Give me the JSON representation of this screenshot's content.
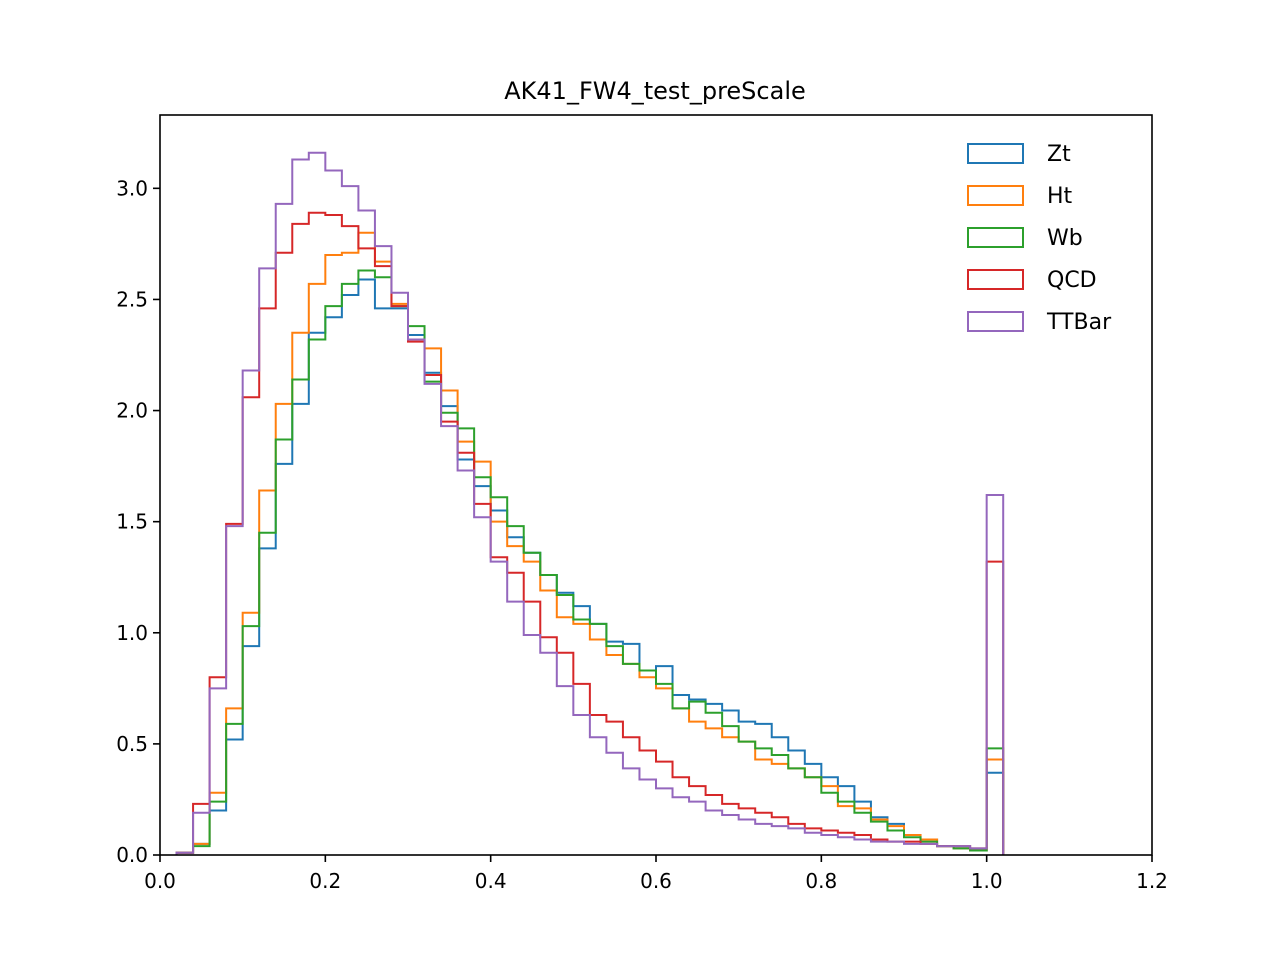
{
  "chart_data": {
    "type": "histogram",
    "title": "AK41_FW4_test_preScale",
    "xlabel": "",
    "ylabel": "",
    "xlim": [
      0.0,
      1.2
    ],
    "ylim": [
      0.0,
      3.33
    ],
    "grid": false,
    "legend_position": "top-right",
    "bin_edges_start": 0.02,
    "bin_width": 0.02,
    "x_ticks": [
      "0.0",
      "0.2",
      "0.4",
      "0.6",
      "0.8",
      "1.0",
      "1.2"
    ],
    "y_ticks": [
      "0.0",
      "0.5",
      "1.0",
      "1.5",
      "2.0",
      "2.5",
      "3.0"
    ],
    "series": [
      {
        "name": "Zt",
        "color": "#1f77b4",
        "values": [
          0.01,
          0.05,
          0.2,
          0.52,
          0.94,
          1.38,
          1.76,
          2.03,
          2.35,
          2.42,
          2.52,
          2.59,
          2.46,
          2.46,
          2.34,
          2.17,
          2.02,
          1.78,
          1.66,
          1.55,
          1.43,
          1.36,
          1.26,
          1.18,
          1.12,
          1.04,
          0.96,
          0.95,
          0.83,
          0.85,
          0.72,
          0.7,
          0.68,
          0.65,
          0.6,
          0.59,
          0.53,
          0.47,
          0.41,
          0.35,
          0.31,
          0.24,
          0.17,
          0.14,
          0.09,
          0.07,
          0.04,
          0.03,
          0.02,
          0.37
        ]
      },
      {
        "name": "Ht",
        "color": "#ff7f0e",
        "values": [
          0.01,
          0.05,
          0.28,
          0.66,
          1.09,
          1.64,
          2.03,
          2.35,
          2.57,
          2.7,
          2.71,
          2.8,
          2.67,
          2.48,
          2.32,
          2.28,
          2.09,
          1.86,
          1.77,
          1.5,
          1.39,
          1.32,
          1.19,
          1.07,
          1.04,
          0.97,
          0.9,
          0.86,
          0.8,
          0.75,
          0.66,
          0.6,
          0.57,
          0.53,
          0.51,
          0.43,
          0.41,
          0.39,
          0.35,
          0.31,
          0.22,
          0.21,
          0.16,
          0.13,
          0.09,
          0.07,
          0.04,
          0.03,
          0.02,
          0.43
        ]
      },
      {
        "name": "Wb",
        "color": "#2ca02c",
        "values": [
          0.01,
          0.04,
          0.24,
          0.59,
          1.03,
          1.45,
          1.87,
          2.14,
          2.32,
          2.47,
          2.57,
          2.63,
          2.6,
          2.47,
          2.38,
          2.13,
          1.99,
          1.92,
          1.7,
          1.61,
          1.48,
          1.36,
          1.26,
          1.17,
          1.06,
          1.04,
          0.94,
          0.86,
          0.83,
          0.77,
          0.66,
          0.69,
          0.64,
          0.58,
          0.51,
          0.48,
          0.45,
          0.39,
          0.35,
          0.28,
          0.24,
          0.19,
          0.15,
          0.11,
          0.08,
          0.06,
          0.04,
          0.03,
          0.02,
          0.48
        ]
      },
      {
        "name": "QCD",
        "color": "#d62728",
        "values": [
          0.01,
          0.23,
          0.8,
          1.49,
          2.06,
          2.46,
          2.71,
          2.84,
          2.89,
          2.88,
          2.83,
          2.73,
          2.65,
          2.47,
          2.31,
          2.16,
          1.95,
          1.81,
          1.58,
          1.34,
          1.27,
          1.14,
          0.98,
          0.91,
          0.77,
          0.63,
          0.6,
          0.53,
          0.47,
          0.42,
          0.35,
          0.31,
          0.27,
          0.23,
          0.21,
          0.19,
          0.17,
          0.14,
          0.12,
          0.11,
          0.1,
          0.09,
          0.07,
          0.06,
          0.06,
          0.05,
          0.04,
          0.04,
          0.03,
          1.32
        ]
      },
      {
        "name": "TTBar",
        "color": "#9467bd",
        "values": [
          0.01,
          0.19,
          0.75,
          1.48,
          2.18,
          2.64,
          2.93,
          3.13,
          3.16,
          3.08,
          3.01,
          2.9,
          2.74,
          2.53,
          2.32,
          2.12,
          1.93,
          1.73,
          1.52,
          1.32,
          1.14,
          0.99,
          0.91,
          0.76,
          0.63,
          0.53,
          0.46,
          0.39,
          0.34,
          0.3,
          0.26,
          0.24,
          0.2,
          0.18,
          0.16,
          0.14,
          0.13,
          0.12,
          0.1,
          0.09,
          0.08,
          0.07,
          0.06,
          0.06,
          0.05,
          0.05,
          0.04,
          0.04,
          0.03,
          1.62
        ]
      }
    ]
  }
}
